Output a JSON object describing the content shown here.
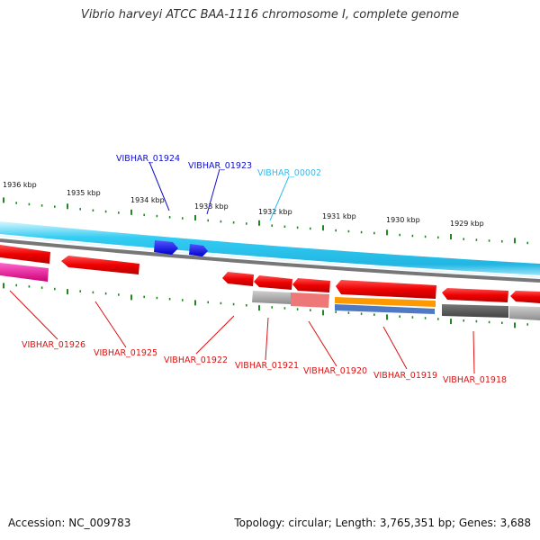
{
  "title": "Vibrio harveyi ATCC BAA-1116 chromosome I, complete genome",
  "accession": "Accession: NC_009783",
  "summary": "Topology: circular; Length: 3,765,351 bp; Genes: 3,688",
  "scale_labels": [
    "1936 kbp",
    "1935 kbp",
    "1934 kbp",
    "1933 kbp",
    "1932 kbp",
    "1931 kbp",
    "1930 kbp",
    "1929 kbp"
  ],
  "genes_top": [
    "VIBHAR_01924",
    "VIBHAR_01923",
    "VIBHAR_00002"
  ],
  "genes_bottom": [
    "VIBHAR_01926",
    "VIBHAR_01925",
    "VIBHAR_01922",
    "VIBHAR_01921",
    "VIBHAR_01920",
    "VIBHAR_01919",
    "VIBHAR_01918"
  ],
  "colors": {
    "forward_gene": "#1a1aff",
    "reverse_gene": "#ff0000",
    "rna": "#33ccee",
    "backbone": "#33ccf5",
    "tick": "#228822",
    "label_forward": "#1010cc",
    "label_reverse": "#dd1111",
    "label_rna": "#33bbee"
  }
}
